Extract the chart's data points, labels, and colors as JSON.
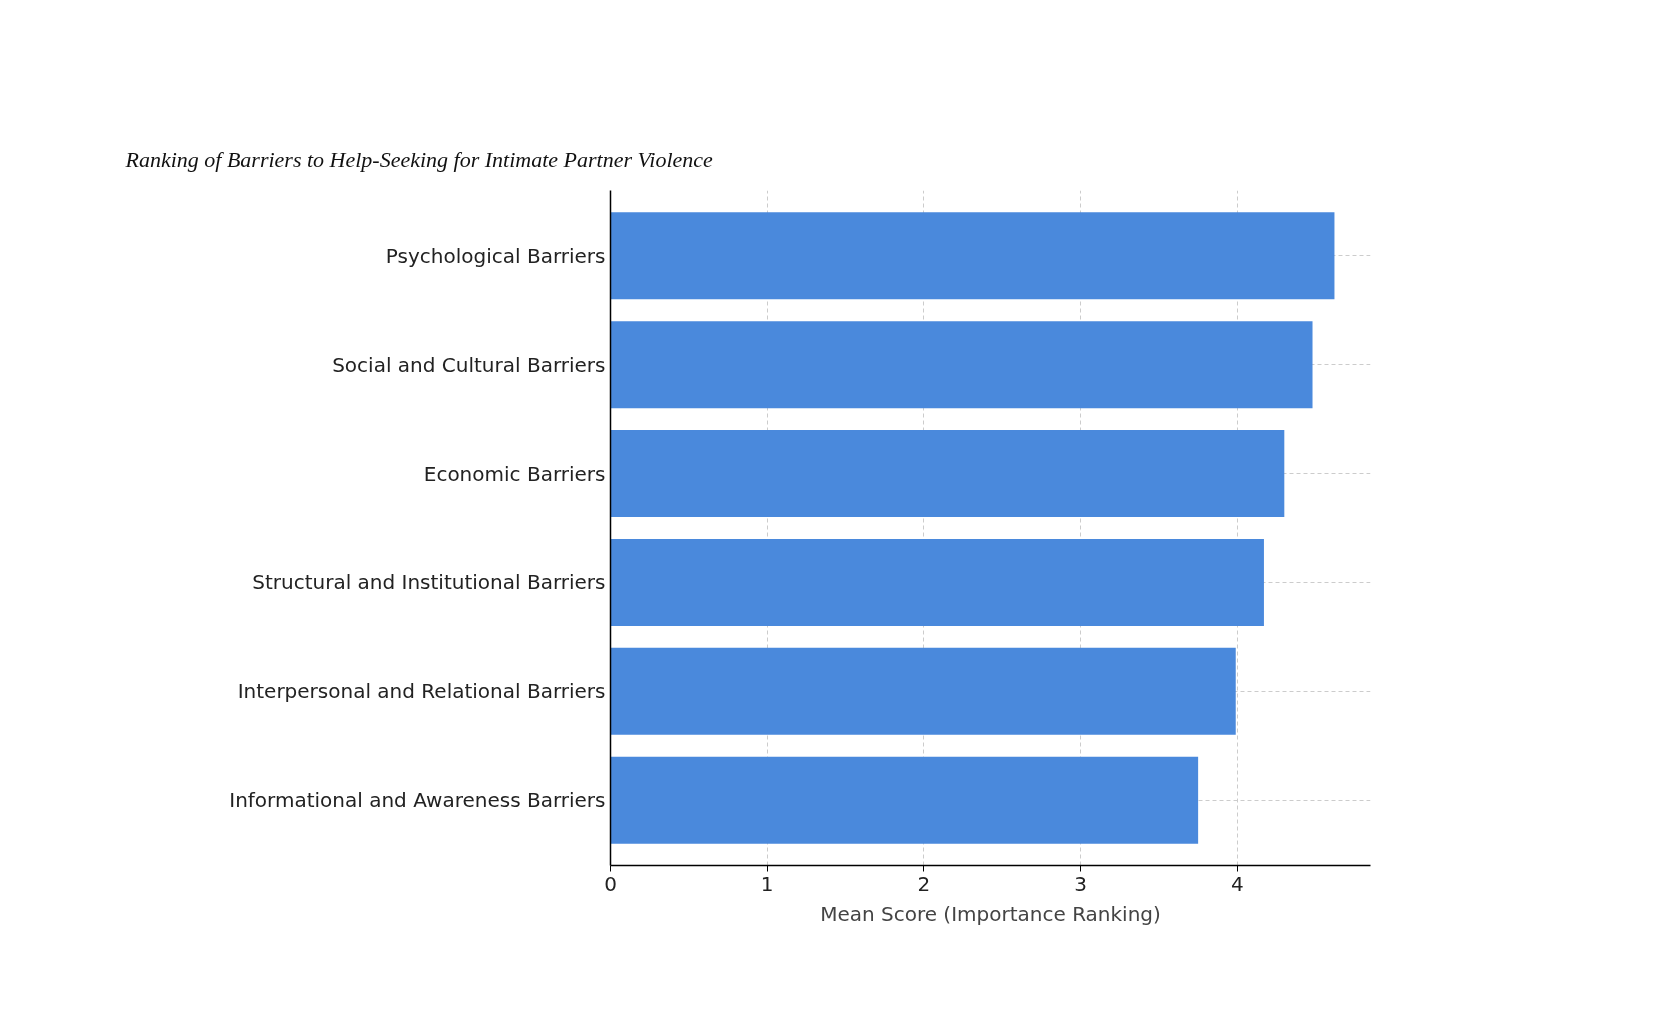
{
  "chart_data": {
    "type": "bar",
    "orientation": "horizontal",
    "title": "Ranking of Barriers to Help-Seeking for Intimate Partner Violence",
    "xlabel": "Mean Score (Importance Ranking)",
    "categories": [
      "Psychological Barriers",
      "Social and Cultural Barriers",
      "Economic Barriers",
      "Structural and Institutional Barriers",
      "Interpersonal and Relational Barriers",
      "Informational and Awareness Barriers"
    ],
    "values": [
      4.62,
      4.48,
      4.3,
      4.17,
      3.99,
      3.75
    ],
    "color": "#4a89dc",
    "xlim": [
      0,
      4.85
    ],
    "xticks": [
      0,
      1,
      2,
      3,
      4
    ],
    "grid": true
  }
}
